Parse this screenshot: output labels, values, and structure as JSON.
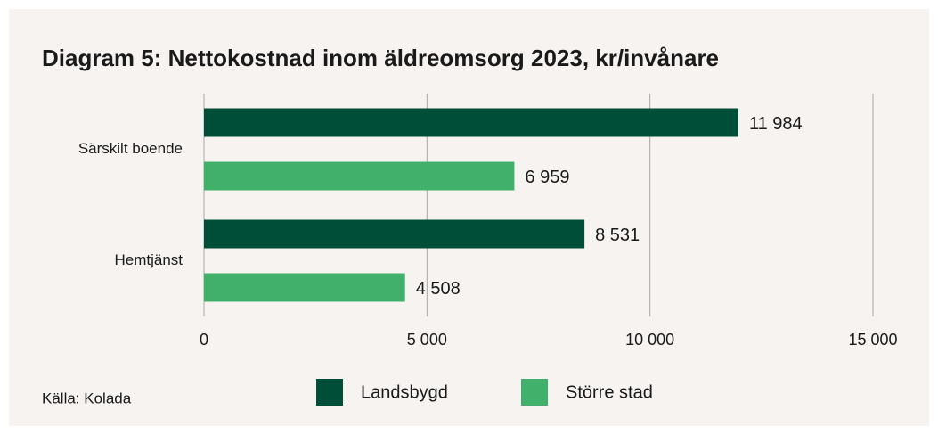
{
  "chart_data": {
    "type": "bar",
    "orientation": "horizontal",
    "title": "Diagram 5: Nettokostnad inom äldreomsorg 2023, kr/invånare",
    "categories": [
      "Särskilt boende",
      "Hemtjänst"
    ],
    "series": [
      {
        "name": "Landsbygd",
        "color": "#004d38",
        "values": [
          11984,
          8531
        ],
        "value_labels": [
          "11 984",
          "8 531"
        ]
      },
      {
        "name": "Större stad",
        "color": "#41b06b",
        "values": [
          6959,
          4508
        ],
        "value_labels": [
          "6 959",
          "4 508"
        ]
      }
    ],
    "xlim": [
      0,
      15000
    ],
    "xticks": [
      0,
      {
        "value": 5000,
        "label": "5 000"
      },
      {
        "value": 10000,
        "label": "10 000"
      },
      {
        "value": 15000,
        "label": "15 000"
      }
    ],
    "grid": true,
    "legend": "bottom",
    "source": "Källa: Kolada"
  }
}
